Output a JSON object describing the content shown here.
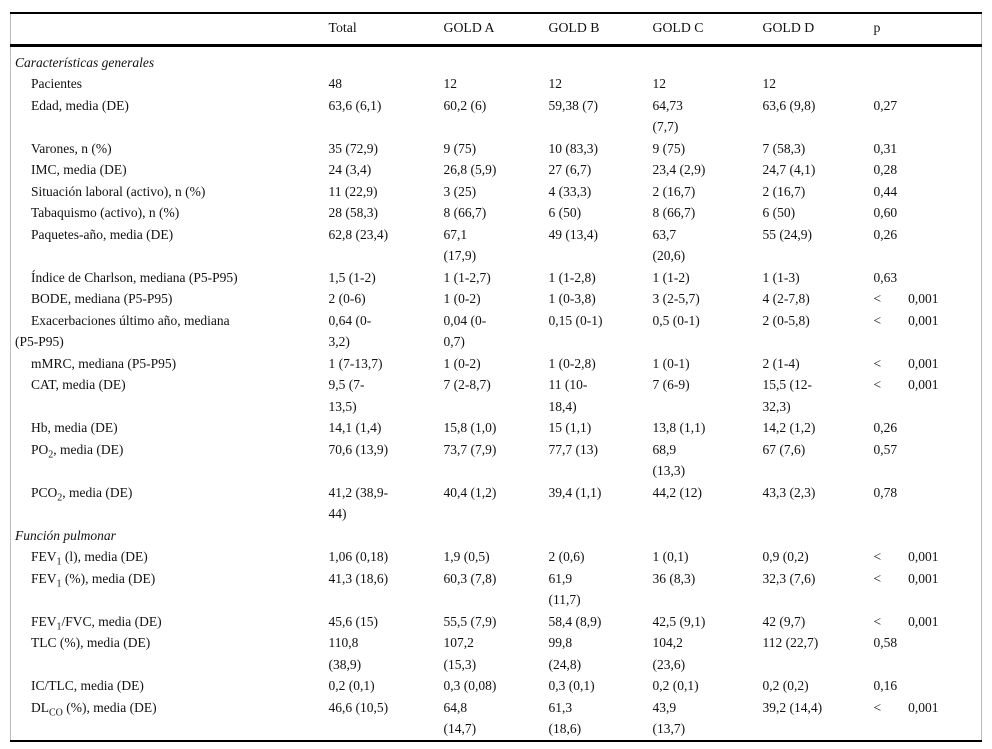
{
  "table": {
    "columns": [
      "",
      "Total",
      "GOLD A",
      "GOLD B",
      "GOLD C",
      "GOLD D",
      "p"
    ],
    "sections": [
      {
        "title": "Características generales",
        "rows": [
          {
            "label": {
              "pre": "Pacientes"
            },
            "values": [
              "48",
              "12",
              "12",
              "12",
              "12",
              ""
            ]
          },
          {
            "label": {
              "pre": "Edad, media (DE)"
            },
            "values": [
              "63,6 (6,1)",
              "60,2 (6)",
              "59,38 (7)",
              "64,73\n(7,7)",
              "63,6 (9,8)",
              "0,27"
            ]
          },
          {
            "label": {
              "pre": "Varones, n (%)"
            },
            "values": [
              "35 (72,9)",
              "9 (75)",
              "10 (83,3)",
              "9 (75)",
              "7 (58,3)",
              "0,31"
            ]
          },
          {
            "label": {
              "pre": "IMC, media (DE)"
            },
            "values": [
              "24 (3,4)",
              "26,8 (5,9)",
              "27 (6,7)",
              "23,4 (2,9)",
              "24,7 (4,1)",
              "0,28"
            ]
          },
          {
            "label": {
              "pre": "Situación laboral (activo), n (%)"
            },
            "values": [
              "11 (22,9)",
              "3 (25)",
              "4 (33,3)",
              "2 (16,7)",
              "2 (16,7)",
              "0,44"
            ]
          },
          {
            "label": {
              "pre": "Tabaquismo (activo), n (%)"
            },
            "values": [
              "28 (58,3)",
              "8 (66,7)",
              "6 (50)",
              "8 (66,7)",
              "6 (50)",
              "0,60"
            ]
          },
          {
            "label": {
              "pre": "Paquetes-año, media (DE)"
            },
            "values": [
              "62,8 (23,4)",
              "67,1\n(17,9)",
              "49 (13,4)",
              "63,7\n(20,6)",
              "55 (24,9)",
              "0,26"
            ]
          },
          {
            "label": {
              "pre": "Índice de Charlson, mediana (P5-P95)"
            },
            "values": [
              "1,5 (1-2)",
              "1 (1-2,7)",
              "1 (1-2,8)",
              "1 (1-2)",
              "1 (1-3)",
              "0,63"
            ]
          },
          {
            "label": {
              "pre": "BODE, mediana (P5-P95)"
            },
            "values": [
              "2 (0-6)",
              "1 (0-2)",
              "1 (0-3,8)",
              "3 (2-5,7)",
              "4 (2-7,8)",
              "<  0,001"
            ]
          },
          {
            "label": {
              "pre": "Exacerbaciones último año, mediana\n(P5-P95)"
            },
            "values": [
              "0,64 (0-\n3,2)",
              "0,04 (0-\n0,7)",
              "0,15 (0-1)",
              "0,5 (0-1)",
              "2 (0-5,8)",
              "<  0,001"
            ]
          },
          {
            "label": {
              "pre": "mMRC, mediana (P5-P95)"
            },
            "values": [
              "1 (7-13,7)",
              "1 (0-2)",
              "1 (0-2,8)",
              "1 (0-1)",
              "2 (1-4)",
              "<  0,001"
            ]
          },
          {
            "label": {
              "pre": "CAT, media (DE)"
            },
            "values": [
              "9,5 (7-\n13,5)",
              "7 (2-8,7)",
              "11 (10-\n18,4)",
              "7 (6-9)",
              "15,5 (12-\n32,3)",
              "<  0,001"
            ]
          },
          {
            "label": {
              "pre": "Hb, media (DE)"
            },
            "values": [
              "14,1 (1,4)",
              "15,8 (1,0)",
              "15 (1,1)",
              "13,8 (1,1)",
              "14,2 (1,2)",
              "0,26"
            ]
          },
          {
            "label": {
              "pre": "PO",
              "sub": "2",
              "post": ", media (DE)"
            },
            "values": [
              "70,6 (13,9)",
              "73,7 (7,9)",
              "77,7 (13)",
              "68,9\n(13,3)",
              "67 (7,6)",
              "0,57"
            ]
          },
          {
            "label": {
              "pre": "PCO",
              "sub": "2",
              "post": ", media (DE)"
            },
            "values": [
              "41,2 (38,9-\n44)",
              "40,4 (1,2)",
              "39,4 (1,1)",
              "44,2 (12)",
              "43,3 (2,3)",
              "0,78"
            ]
          }
        ]
      },
      {
        "title": "Función pulmonar",
        "rows": [
          {
            "label": {
              "pre": "FEV",
              "sub": "1",
              "post": " (l), media (DE)"
            },
            "values": [
              "1,06 (0,18)",
              "1,9 (0,5)",
              "2 (0,6)",
              "1 (0,1)",
              "0,9 (0,2)",
              "<  0,001"
            ]
          },
          {
            "label": {
              "pre": "FEV",
              "sub": "1",
              "post": " (%), media (DE)"
            },
            "values": [
              "41,3 (18,6)",
              "60,3 (7,8)",
              "61,9\n(11,7)",
              "36 (8,3)",
              "32,3 (7,6)",
              "<  0,001"
            ]
          },
          {
            "label": {
              "pre": "FEV",
              "sub": "1",
              "post": "/FVC, media (DE)"
            },
            "values": [
              "45,6 (15)",
              "55,5 (7,9)",
              "58,4 (8,9)",
              "42,5 (9,1)",
              "42 (9,7)",
              "<  0,001"
            ]
          },
          {
            "label": {
              "pre": "TLC (%), media (DE)"
            },
            "values": [
              "110,8\n(38,9)",
              "107,2\n(15,3)",
              "99,8\n(24,8)",
              "104,2\n(23,6)",
              "112 (22,7)",
              "0,58"
            ]
          },
          {
            "label": {
              "pre": "IC/TLC, media (DE)"
            },
            "values": [
              "0,2 (0,1)",
              "0,3 (0,08)",
              "0,3 (0,1)",
              "0,2 (0,1)",
              "0,2 (0,2)",
              "0,16"
            ]
          },
          {
            "label": {
              "pre": "DL",
              "sub": "CO",
              "post": " (%), media (DE)"
            },
            "values": [
              "46,6 (10,5)",
              "64,8\n(14,7)",
              "61,3\n(18,6)",
              "43,9\n(13,7)",
              "39,2 (14,4)",
              "<  0,001"
            ]
          }
        ]
      }
    ]
  }
}
